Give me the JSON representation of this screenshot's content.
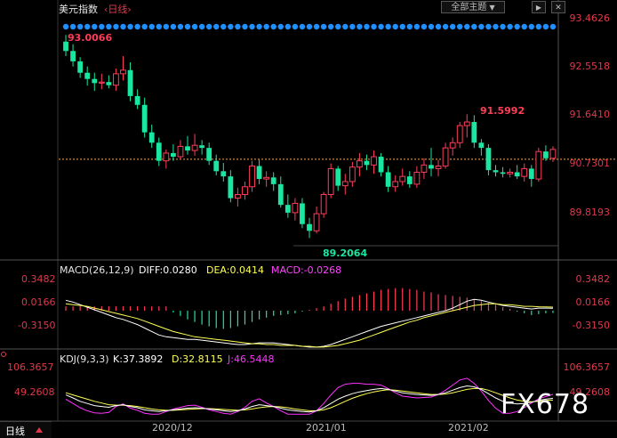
{
  "header": {
    "title": "美元指数",
    "period": "‹日线›",
    "theme_selector": "全部主题",
    "theme_arrow": "▼",
    "prev_button": "▶",
    "close_button": "✕"
  },
  "main_chart": {
    "y_ticks": [
      "93.4626",
      "92.5518",
      "91.6410",
      "90.7301",
      "89.8193"
    ],
    "current_price": "90.7301",
    "annotations": {
      "high_start": "93.0066",
      "peak": "91.5992",
      "low": "89.2064"
    }
  },
  "macd": {
    "label": "MACD(26,12,9)",
    "diff": "DIFF:0.0280",
    "dea": "DEA:0.0414",
    "macd": "MACD:-0.0268",
    "y_ticks": [
      "0.3482",
      "0.0166",
      "-0.3150"
    ]
  },
  "kdj": {
    "label": "KDJ(9,3,3)",
    "k": "K:37.3892",
    "d": "D:32.8115",
    "j": "J:46.5448",
    "y_ticks": [
      "106.3657",
      "49.2608"
    ]
  },
  "footer": {
    "period": "日线",
    "x_ticks": [
      "2020/12",
      "2021/01",
      "2021/02"
    ]
  },
  "watermark": "FX678",
  "colors": {
    "up": "#ff3d5a",
    "down": "#19e6a0",
    "dot": "#1e90ff",
    "diff": "#ffffff",
    "dea": "#ffff55",
    "macd_label": "#ff44ff",
    "kdj_j": "#ff33ff",
    "price_line": "#ffa040"
  },
  "chart_data": [
    {
      "type": "candlestick",
      "title": "美元指数",
      "ylim": [
        89.2,
        93.46
      ],
      "y_ticks": [
        93.4626,
        92.5518,
        91.641,
        90.7301,
        89.8193
      ],
      "x_ticks": [
        "2020/12",
        "2021/01",
        "2021/02"
      ],
      "ohlc": [
        [
          93.0,
          93.13,
          92.72,
          92.82
        ],
        [
          92.82,
          92.95,
          92.52,
          92.62
        ],
        [
          92.62,
          92.7,
          92.3,
          92.4
        ],
        [
          92.4,
          92.52,
          92.15,
          92.28
        ],
        [
          92.28,
          92.4,
          92.05,
          92.2
        ],
        [
          92.2,
          92.38,
          92.08,
          92.22
        ],
        [
          92.22,
          92.35,
          92.1,
          92.16
        ],
        [
          92.16,
          92.48,
          92.05,
          92.38
        ],
        [
          92.38,
          92.72,
          92.25,
          92.45
        ],
        [
          92.45,
          92.6,
          91.85,
          91.95
        ],
        [
          91.95,
          92.08,
          91.7,
          91.78
        ],
        [
          91.78,
          91.92,
          91.15,
          91.25
        ],
        [
          91.25,
          91.4,
          90.95,
          91.05
        ],
        [
          91.05,
          91.15,
          90.6,
          90.7
        ],
        [
          90.7,
          90.92,
          90.55,
          90.85
        ],
        [
          90.85,
          91.02,
          90.7,
          90.78
        ],
        [
          90.78,
          91.1,
          90.72,
          90.98
        ],
        [
          90.98,
          91.18,
          90.82,
          90.9
        ],
        [
          90.9,
          91.22,
          90.8,
          91.0
        ],
        [
          91.0,
          91.1,
          90.82,
          90.95
        ],
        [
          90.95,
          91.05,
          90.62,
          90.7
        ],
        [
          90.7,
          90.82,
          90.42,
          90.5
        ],
        [
          90.5,
          90.66,
          90.3,
          90.4
        ],
        [
          90.4,
          90.52,
          89.9,
          89.98
        ],
        [
          89.98,
          90.18,
          89.82,
          90.05
        ],
        [
          90.05,
          90.3,
          89.95,
          90.2
        ],
        [
          90.2,
          90.7,
          90.1,
          90.6
        ],
        [
          90.6,
          90.72,
          90.25,
          90.35
        ],
        [
          90.35,
          90.5,
          90.2,
          90.38
        ],
        [
          90.38,
          90.48,
          90.12,
          90.25
        ],
        [
          90.25,
          90.4,
          89.8,
          89.85
        ],
        [
          89.85,
          90.05,
          89.6,
          89.7
        ],
        [
          89.7,
          89.98,
          89.55,
          89.88
        ],
        [
          89.88,
          89.98,
          89.4,
          89.48
        ],
        [
          89.48,
          89.6,
          89.21,
          89.35
        ],
        [
          89.35,
          89.82,
          89.3,
          89.68
        ],
        [
          89.68,
          90.1,
          89.6,
          90.05
        ],
        [
          90.05,
          90.65,
          89.98,
          90.55
        ],
        [
          90.55,
          90.6,
          90.12,
          90.22
        ],
        [
          90.22,
          90.45,
          90.05,
          90.3
        ],
        [
          90.3,
          90.68,
          90.2,
          90.58
        ],
        [
          90.58,
          90.85,
          90.4,
          90.7
        ],
        [
          90.7,
          90.82,
          90.52,
          90.62
        ],
        [
          90.62,
          90.9,
          90.45,
          90.78
        ],
        [
          90.78,
          90.85,
          90.4,
          90.48
        ],
        [
          90.48,
          90.6,
          90.1,
          90.2
        ],
        [
          90.2,
          90.42,
          90.1,
          90.3
        ],
        [
          90.3,
          90.55,
          90.22,
          90.4
        ],
        [
          90.4,
          90.5,
          90.18,
          90.25
        ],
        [
          90.25,
          90.6,
          90.18,
          90.48
        ],
        [
          90.48,
          90.75,
          90.35,
          90.62
        ],
        [
          90.62,
          90.95,
          90.4,
          90.55
        ],
        [
          90.55,
          90.72,
          90.4,
          90.6
        ],
        [
          90.6,
          91.05,
          90.55,
          90.95
        ],
        [
          90.95,
          91.15,
          90.8,
          91.05
        ],
        [
          91.05,
          91.45,
          90.95,
          91.38
        ],
        [
          91.38,
          91.6,
          91.15,
          91.45
        ],
        [
          91.45,
          91.58,
          90.95,
          91.05
        ],
        [
          91.05,
          91.12,
          90.8,
          90.95
        ],
        [
          90.95,
          91.02,
          90.42,
          90.52
        ],
        [
          90.52,
          90.62,
          90.4,
          90.48
        ],
        [
          90.48,
          90.58,
          90.38,
          90.45
        ],
        [
          90.45,
          90.55,
          90.38,
          90.48
        ],
        [
          90.48,
          90.62,
          90.35,
          90.4
        ],
        [
          90.4,
          90.65,
          90.3,
          90.55
        ],
        [
          90.55,
          90.62,
          90.2,
          90.35
        ],
        [
          90.35,
          90.95,
          90.3,
          90.88
        ],
        [
          90.88,
          91.0,
          90.7,
          90.75
        ],
        [
          90.75,
          90.98,
          90.68,
          90.92
        ]
      ],
      "annotations": [
        {
          "text": "93.0066",
          "kind": "high"
        },
        {
          "text": "91.5992",
          "kind": "high"
        },
        {
          "text": "89.2064",
          "kind": "low"
        }
      ]
    },
    {
      "type": "bar+line",
      "title": "MACD(26,12,9)",
      "ylim": [
        -0.4,
        0.4
      ],
      "y_ticks": [
        0.3482,
        0.0166,
        -0.315
      ],
      "series": [
        {
          "name": "MACD",
          "values": [
            0.05,
            0.05,
            0.05,
            0.05,
            0.05,
            0.05,
            0.05,
            0.05,
            0.05,
            0.05,
            0.05,
            0.05,
            0.05,
            0.05,
            0.05,
            -0.02,
            -0.06,
            -0.1,
            -0.13,
            -0.16,
            -0.18,
            -0.2,
            -0.21,
            -0.2,
            -0.18,
            -0.16,
            -0.13,
            -0.1,
            -0.08,
            -0.06,
            -0.05,
            -0.04,
            -0.03,
            -0.01,
            0.01,
            0.03,
            0.05,
            0.08,
            0.11,
            0.14,
            0.16,
            0.18,
            0.2,
            0.22,
            0.24,
            0.25,
            0.26,
            0.26,
            0.25,
            0.24,
            0.22,
            0.21,
            0.19,
            0.18,
            0.17,
            0.16,
            0.15,
            0.13,
            0.11,
            0.09,
            0.07,
            0.04,
            0.02,
            -0.01,
            -0.03,
            -0.05,
            -0.04,
            -0.03,
            -0.027
          ]
        },
        {
          "name": "DIFF",
          "values": [
            0.12,
            0.1,
            0.07,
            0.04,
            0.01,
            -0.02,
            -0.05,
            -0.08,
            -0.1,
            -0.13,
            -0.16,
            -0.2,
            -0.24,
            -0.28,
            -0.3,
            -0.31,
            -0.32,
            -0.33,
            -0.33,
            -0.34,
            -0.35,
            -0.36,
            -0.37,
            -0.38,
            -0.39,
            -0.39,
            -0.38,
            -0.37,
            -0.37,
            -0.37,
            -0.38,
            -0.39,
            -0.4,
            -0.41,
            -0.42,
            -0.42,
            -0.41,
            -0.39,
            -0.36,
            -0.33,
            -0.3,
            -0.27,
            -0.24,
            -0.21,
            -0.18,
            -0.16,
            -0.14,
            -0.12,
            -0.1,
            -0.08,
            -0.06,
            -0.04,
            -0.02,
            0.0,
            0.03,
            0.07,
            0.11,
            0.13,
            0.12,
            0.1,
            0.08,
            0.06,
            0.05,
            0.04,
            0.03,
            0.02,
            0.03,
            0.03,
            0.028
          ]
        },
        {
          "name": "DEA",
          "values": [
            0.08,
            0.07,
            0.06,
            0.05,
            0.03,
            0.01,
            -0.01,
            -0.03,
            -0.05,
            -0.07,
            -0.09,
            -0.12,
            -0.15,
            -0.18,
            -0.21,
            -0.24,
            -0.26,
            -0.28,
            -0.3,
            -0.31,
            -0.32,
            -0.33,
            -0.34,
            -0.35,
            -0.36,
            -0.37,
            -0.38,
            -0.38,
            -0.39,
            -0.39,
            -0.4,
            -0.4,
            -0.4,
            -0.41,
            -0.41,
            -0.42,
            -0.42,
            -0.41,
            -0.4,
            -0.38,
            -0.36,
            -0.34,
            -0.31,
            -0.28,
            -0.25,
            -0.22,
            -0.19,
            -0.16,
            -0.13,
            -0.11,
            -0.08,
            -0.06,
            -0.04,
            -0.02,
            0.0,
            0.02,
            0.04,
            0.06,
            0.07,
            0.08,
            0.08,
            0.07,
            0.07,
            0.06,
            0.05,
            0.05,
            0.045,
            0.043,
            0.041
          ]
        }
      ]
    },
    {
      "type": "line",
      "title": "KDJ(9,3,3)",
      "ylim": [
        -10,
        115
      ],
      "y_ticks": [
        106.3657,
        49.2608
      ],
      "series": [
        {
          "name": "K",
          "values": [
            45,
            38,
            30,
            25,
            20,
            18,
            16,
            20,
            22,
            18,
            15,
            10,
            8,
            6,
            8,
            10,
            12,
            14,
            15,
            14,
            12,
            10,
            8,
            6,
            8,
            12,
            18,
            22,
            20,
            18,
            14,
            10,
            8,
            6,
            5,
            8,
            15,
            25,
            35,
            42,
            48,
            52,
            55,
            58,
            60,
            58,
            54,
            50,
            48,
            46,
            45,
            44,
            46,
            50,
            56,
            62,
            66,
            64,
            58,
            48,
            38,
            30,
            26,
            24,
            25,
            28,
            32,
            35,
            37
          ]
        },
        {
          "name": "D",
          "values": [
            50,
            45,
            40,
            35,
            30,
            26,
            22,
            21,
            21,
            20,
            18,
            15,
            12,
            10,
            9,
            9,
            10,
            11,
            12,
            13,
            13,
            12,
            11,
            10,
            9,
            10,
            12,
            15,
            17,
            18,
            17,
            15,
            12,
            10,
            8,
            8,
            10,
            15,
            22,
            30,
            37,
            43,
            48,
            52,
            55,
            57,
            56,
            54,
            52,
            50,
            48,
            46,
            46,
            47,
            50,
            54,
            58,
            60,
            60,
            56,
            50,
            44,
            38,
            33,
            30,
            29,
            30,
            32,
            33
          ]
        },
        {
          "name": "J",
          "values": [
            35,
            25,
            15,
            8,
            3,
            2,
            4,
            18,
            24,
            14,
            9,
            2,
            0,
            0,
            6,
            12,
            16,
            20,
            21,
            16,
            10,
            6,
            2,
            0,
            6,
            16,
            30,
            36,
            26,
            18,
            8,
            0,
            0,
            0,
            0,
            8,
            25,
            45,
            62,
            70,
            72,
            72,
            70,
            70,
            68,
            60,
            50,
            42,
            40,
            38,
            39,
            40,
            46,
            56,
            68,
            80,
            84,
            72,
            54,
            32,
            14,
            2,
            2,
            6,
            15,
            26,
            36,
            41,
            46.5
          ]
        }
      ]
    }
  ]
}
